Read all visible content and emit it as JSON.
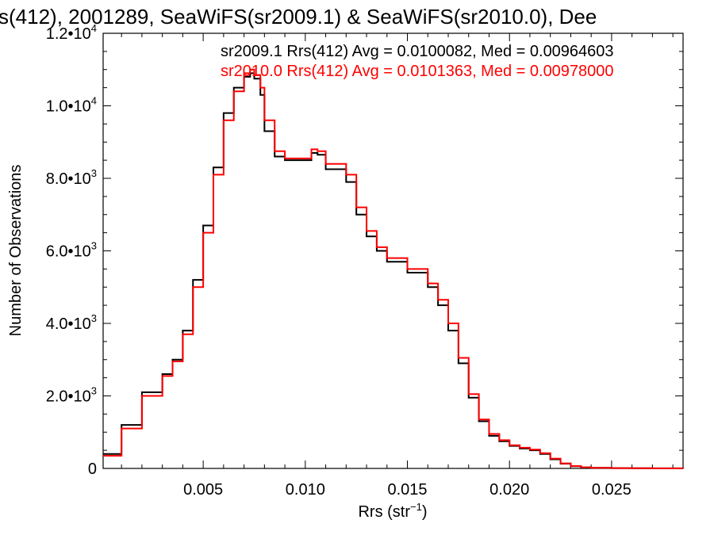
{
  "chart_data": {
    "type": "line",
    "title": "s(412), 2001289, SeaWiFS(sr2009.1) & SeaWiFS(sr2010.0), Dee",
    "xlabel": "Rrs (str",
    "xlabel_sup": "−1",
    "xlabel_end": ")",
    "ylabel": "Number of Observations",
    "xlim": [
      0.0001,
      0.0285
    ],
    "ylim": [
      0,
      12000
    ],
    "xticks": [
      {
        "value": 0.005,
        "label": "0.005"
      },
      {
        "value": 0.01,
        "label": "0.010"
      },
      {
        "value": 0.015,
        "label": "0.015"
      },
      {
        "value": 0.02,
        "label": "0.020"
      },
      {
        "value": 0.025,
        "label": "0.025"
      }
    ],
    "yticks": [
      {
        "value": 0,
        "mant": "0",
        "exp": ""
      },
      {
        "value": 2000,
        "mant": "2.0•10",
        "exp": "3"
      },
      {
        "value": 4000,
        "mant": "4.0•10",
        "exp": "3"
      },
      {
        "value": 6000,
        "mant": "6.0•10",
        "exp": "3"
      },
      {
        "value": 8000,
        "mant": "8.0•10",
        "exp": "3"
      },
      {
        "value": 10000,
        "mant": "1.0•10",
        "exp": "4"
      },
      {
        "value": 12000,
        "mant": "1.2•10",
        "exp": "4"
      }
    ],
    "grid": false,
    "legend_position": "top-right",
    "series": [
      {
        "name": "sr2009.1 Rrs(412) Avg = 0.0100082, Med = 0.00964603",
        "color": "#000000",
        "x": [
          0.0001,
          0.001,
          0.002,
          0.003,
          0.0035,
          0.004,
          0.0045,
          0.005,
          0.0055,
          0.006,
          0.0065,
          0.007,
          0.0073,
          0.0075,
          0.0078,
          0.008,
          0.0085,
          0.009,
          0.0095,
          0.01,
          0.0103,
          0.0106,
          0.011,
          0.012,
          0.0125,
          0.013,
          0.0135,
          0.014,
          0.015,
          0.016,
          0.0165,
          0.017,
          0.0175,
          0.018,
          0.0185,
          0.019,
          0.0195,
          0.02,
          0.0205,
          0.021,
          0.0215,
          0.022,
          0.0225,
          0.023,
          0.0235,
          0.024,
          0.025,
          0.026,
          0.027,
          0.0285
        ],
        "y": [
          400,
          1200,
          2100,
          2600,
          3000,
          3800,
          5200,
          6700,
          8300,
          9800,
          10500,
          10800,
          10900,
          10750,
          10300,
          9300,
          8600,
          8500,
          8500,
          8500,
          8700,
          8650,
          8250,
          7900,
          7000,
          6400,
          6000,
          5700,
          5400,
          5000,
          4500,
          3800,
          2900,
          1950,
          1300,
          900,
          750,
          620,
          550,
          500,
          400,
          250,
          130,
          60,
          30,
          15,
          8,
          5,
          3,
          0
        ]
      },
      {
        "name": "sr2010.0 Rrs(412) Avg = 0.0101363, Med = 0.00978000",
        "color": "#ff0000",
        "x": [
          0.0001,
          0.001,
          0.002,
          0.003,
          0.0035,
          0.004,
          0.0045,
          0.005,
          0.0055,
          0.006,
          0.0065,
          0.007,
          0.0073,
          0.0075,
          0.0078,
          0.008,
          0.0085,
          0.009,
          0.0095,
          0.01,
          0.0103,
          0.0106,
          0.011,
          0.012,
          0.0125,
          0.013,
          0.0135,
          0.014,
          0.015,
          0.016,
          0.0165,
          0.017,
          0.0175,
          0.018,
          0.0185,
          0.019,
          0.0195,
          0.02,
          0.0205,
          0.021,
          0.0215,
          0.022,
          0.0225,
          0.023,
          0.0235,
          0.024,
          0.025,
          0.026,
          0.027,
          0.0285
        ],
        "y": [
          350,
          1100,
          2000,
          2550,
          2950,
          3700,
          5000,
          6500,
          8100,
          9600,
          10400,
          10900,
          11000,
          10850,
          10500,
          9600,
          8750,
          8550,
          8550,
          8550,
          8800,
          8750,
          8400,
          8100,
          7200,
          6550,
          6100,
          5800,
          5500,
          5100,
          4650,
          4000,
          3050,
          2050,
          1350,
          950,
          780,
          640,
          570,
          520,
          420,
          270,
          140,
          65,
          32,
          16,
          9,
          5,
          3,
          0
        ]
      }
    ]
  }
}
